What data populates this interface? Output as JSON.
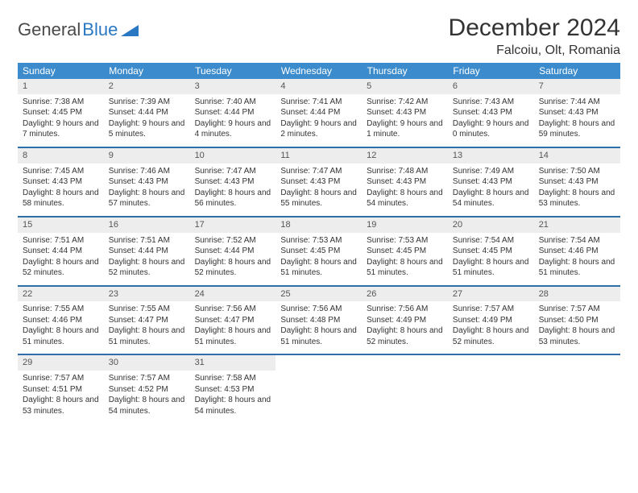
{
  "brand": {
    "t1": "General",
    "t2": "Blue"
  },
  "title": "December 2024",
  "location": "Falcoiu, Olt, Romania",
  "colors": {
    "header_bg": "#3c8ccd",
    "header_text": "#ffffff",
    "row_divider": "#2f6fa8",
    "daynum_bg": "#ededed",
    "logo_blue": "#2b78c2"
  },
  "weekdays": [
    "Sunday",
    "Monday",
    "Tuesday",
    "Wednesday",
    "Thursday",
    "Friday",
    "Saturday"
  ],
  "weeks": [
    [
      {
        "n": "1",
        "sr": "7:38 AM",
        "ss": "4:45 PM",
        "dl": "9 hours and 7 minutes."
      },
      {
        "n": "2",
        "sr": "7:39 AM",
        "ss": "4:44 PM",
        "dl": "9 hours and 5 minutes."
      },
      {
        "n": "3",
        "sr": "7:40 AM",
        "ss": "4:44 PM",
        "dl": "9 hours and 4 minutes."
      },
      {
        "n": "4",
        "sr": "7:41 AM",
        "ss": "4:44 PM",
        "dl": "9 hours and 2 minutes."
      },
      {
        "n": "5",
        "sr": "7:42 AM",
        "ss": "4:43 PM",
        "dl": "9 hours and 1 minute."
      },
      {
        "n": "6",
        "sr": "7:43 AM",
        "ss": "4:43 PM",
        "dl": "9 hours and 0 minutes."
      },
      {
        "n": "7",
        "sr": "7:44 AM",
        "ss": "4:43 PM",
        "dl": "8 hours and 59 minutes."
      }
    ],
    [
      {
        "n": "8",
        "sr": "7:45 AM",
        "ss": "4:43 PM",
        "dl": "8 hours and 58 minutes."
      },
      {
        "n": "9",
        "sr": "7:46 AM",
        "ss": "4:43 PM",
        "dl": "8 hours and 57 minutes."
      },
      {
        "n": "10",
        "sr": "7:47 AM",
        "ss": "4:43 PM",
        "dl": "8 hours and 56 minutes."
      },
      {
        "n": "11",
        "sr": "7:47 AM",
        "ss": "4:43 PM",
        "dl": "8 hours and 55 minutes."
      },
      {
        "n": "12",
        "sr": "7:48 AM",
        "ss": "4:43 PM",
        "dl": "8 hours and 54 minutes."
      },
      {
        "n": "13",
        "sr": "7:49 AM",
        "ss": "4:43 PM",
        "dl": "8 hours and 54 minutes."
      },
      {
        "n": "14",
        "sr": "7:50 AM",
        "ss": "4:43 PM",
        "dl": "8 hours and 53 minutes."
      }
    ],
    [
      {
        "n": "15",
        "sr": "7:51 AM",
        "ss": "4:44 PM",
        "dl": "8 hours and 52 minutes."
      },
      {
        "n": "16",
        "sr": "7:51 AM",
        "ss": "4:44 PM",
        "dl": "8 hours and 52 minutes."
      },
      {
        "n": "17",
        "sr": "7:52 AM",
        "ss": "4:44 PM",
        "dl": "8 hours and 52 minutes."
      },
      {
        "n": "18",
        "sr": "7:53 AM",
        "ss": "4:45 PM",
        "dl": "8 hours and 51 minutes."
      },
      {
        "n": "19",
        "sr": "7:53 AM",
        "ss": "4:45 PM",
        "dl": "8 hours and 51 minutes."
      },
      {
        "n": "20",
        "sr": "7:54 AM",
        "ss": "4:45 PM",
        "dl": "8 hours and 51 minutes."
      },
      {
        "n": "21",
        "sr": "7:54 AM",
        "ss": "4:46 PM",
        "dl": "8 hours and 51 minutes."
      }
    ],
    [
      {
        "n": "22",
        "sr": "7:55 AM",
        "ss": "4:46 PM",
        "dl": "8 hours and 51 minutes."
      },
      {
        "n": "23",
        "sr": "7:55 AM",
        "ss": "4:47 PM",
        "dl": "8 hours and 51 minutes."
      },
      {
        "n": "24",
        "sr": "7:56 AM",
        "ss": "4:47 PM",
        "dl": "8 hours and 51 minutes."
      },
      {
        "n": "25",
        "sr": "7:56 AM",
        "ss": "4:48 PM",
        "dl": "8 hours and 51 minutes."
      },
      {
        "n": "26",
        "sr": "7:56 AM",
        "ss": "4:49 PM",
        "dl": "8 hours and 52 minutes."
      },
      {
        "n": "27",
        "sr": "7:57 AM",
        "ss": "4:49 PM",
        "dl": "8 hours and 52 minutes."
      },
      {
        "n": "28",
        "sr": "7:57 AM",
        "ss": "4:50 PM",
        "dl": "8 hours and 53 minutes."
      }
    ],
    [
      {
        "n": "29",
        "sr": "7:57 AM",
        "ss": "4:51 PM",
        "dl": "8 hours and 53 minutes."
      },
      {
        "n": "30",
        "sr": "7:57 AM",
        "ss": "4:52 PM",
        "dl": "8 hours and 54 minutes."
      },
      {
        "n": "31",
        "sr": "7:58 AM",
        "ss": "4:53 PM",
        "dl": "8 hours and 54 minutes."
      },
      null,
      null,
      null,
      null
    ]
  ],
  "labels": {
    "sunrise": "Sunrise:",
    "sunset": "Sunset:",
    "daylight": "Daylight:"
  }
}
